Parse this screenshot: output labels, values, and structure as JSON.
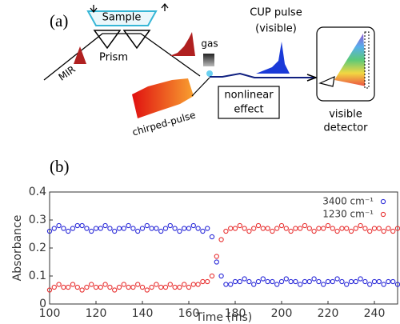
{
  "diagram": {
    "panel_label": "(a)",
    "sample": "Sample",
    "prism": "Prism",
    "mir": "MIR",
    "gas": "gas",
    "cup_pulse": [
      "CUP pulse",
      "(visible)"
    ],
    "chirped_pulse": "chirped-pulse",
    "nonlinear_effect": [
      "nonlinear",
      "effect"
    ],
    "detector": [
      "visible",
      "detector"
    ]
  },
  "chart_data": {
    "type": "scatter",
    "panel_label": "(b)",
    "x_label": "Time (ms)",
    "y_label": "Absorbance",
    "xlim": [
      100,
      250
    ],
    "ylim": [
      0,
      0.4
    ],
    "xticks": [
      100,
      120,
      140,
      160,
      180,
      200,
      220,
      240
    ],
    "yticks": [
      0,
      0.1,
      0.2,
      0.3,
      0.4
    ],
    "legend": "upper right",
    "x": [
      100,
      102,
      104,
      106,
      108,
      110,
      112,
      114,
      116,
      118,
      120,
      122,
      124,
      126,
      128,
      130,
      132,
      134,
      136,
      138,
      140,
      142,
      144,
      146,
      148,
      150,
      152,
      154,
      156,
      158,
      160,
      162,
      164,
      166,
      168,
      170,
      172,
      174,
      176,
      178,
      180,
      182,
      184,
      186,
      188,
      190,
      192,
      194,
      196,
      198,
      200,
      202,
      204,
      206,
      208,
      210,
      212,
      214,
      216,
      218,
      220,
      222,
      224,
      226,
      228,
      230,
      232,
      234,
      236,
      238,
      240,
      242,
      244,
      246,
      248,
      250
    ],
    "series": [
      {
        "name": "3400 cm⁻¹",
        "color": "#2a2ad8",
        "values": [
          0.26,
          0.27,
          0.28,
          0.27,
          0.26,
          0.27,
          0.28,
          0.28,
          0.27,
          0.26,
          0.27,
          0.27,
          0.28,
          0.27,
          0.26,
          0.27,
          0.27,
          0.28,
          0.27,
          0.26,
          0.27,
          0.28,
          0.27,
          0.27,
          0.26,
          0.27,
          0.28,
          0.27,
          0.26,
          0.27,
          0.27,
          0.28,
          0.27,
          0.26,
          0.27,
          0.24,
          0.15,
          0.1,
          0.07,
          0.07,
          0.08,
          0.08,
          0.09,
          0.08,
          0.07,
          0.08,
          0.09,
          0.08,
          0.08,
          0.07,
          0.08,
          0.09,
          0.08,
          0.08,
          0.07,
          0.08,
          0.08,
          0.09,
          0.08,
          0.07,
          0.08,
          0.08,
          0.09,
          0.08,
          0.07,
          0.08,
          0.08,
          0.09,
          0.08,
          0.07,
          0.08,
          0.08,
          0.07,
          0.08,
          0.08,
          0.07
        ]
      },
      {
        "name": "1230 cm⁻¹",
        "color": "#e83232",
        "values": [
          0.05,
          0.06,
          0.07,
          0.06,
          0.06,
          0.07,
          0.06,
          0.05,
          0.06,
          0.07,
          0.06,
          0.06,
          0.07,
          0.06,
          0.05,
          0.06,
          0.07,
          0.06,
          0.06,
          0.07,
          0.06,
          0.05,
          0.06,
          0.07,
          0.06,
          0.06,
          0.07,
          0.06,
          0.06,
          0.07,
          0.06,
          0.07,
          0.07,
          0.08,
          0.08,
          0.1,
          0.17,
          0.23,
          0.26,
          0.27,
          0.27,
          0.28,
          0.27,
          0.26,
          0.27,
          0.28,
          0.27,
          0.27,
          0.26,
          0.27,
          0.28,
          0.27,
          0.26,
          0.27,
          0.27,
          0.28,
          0.27,
          0.26,
          0.27,
          0.27,
          0.28,
          0.27,
          0.26,
          0.27,
          0.27,
          0.26,
          0.27,
          0.28,
          0.27,
          0.26,
          0.27,
          0.27,
          0.26,
          0.27,
          0.26,
          0.27
        ]
      }
    ]
  }
}
